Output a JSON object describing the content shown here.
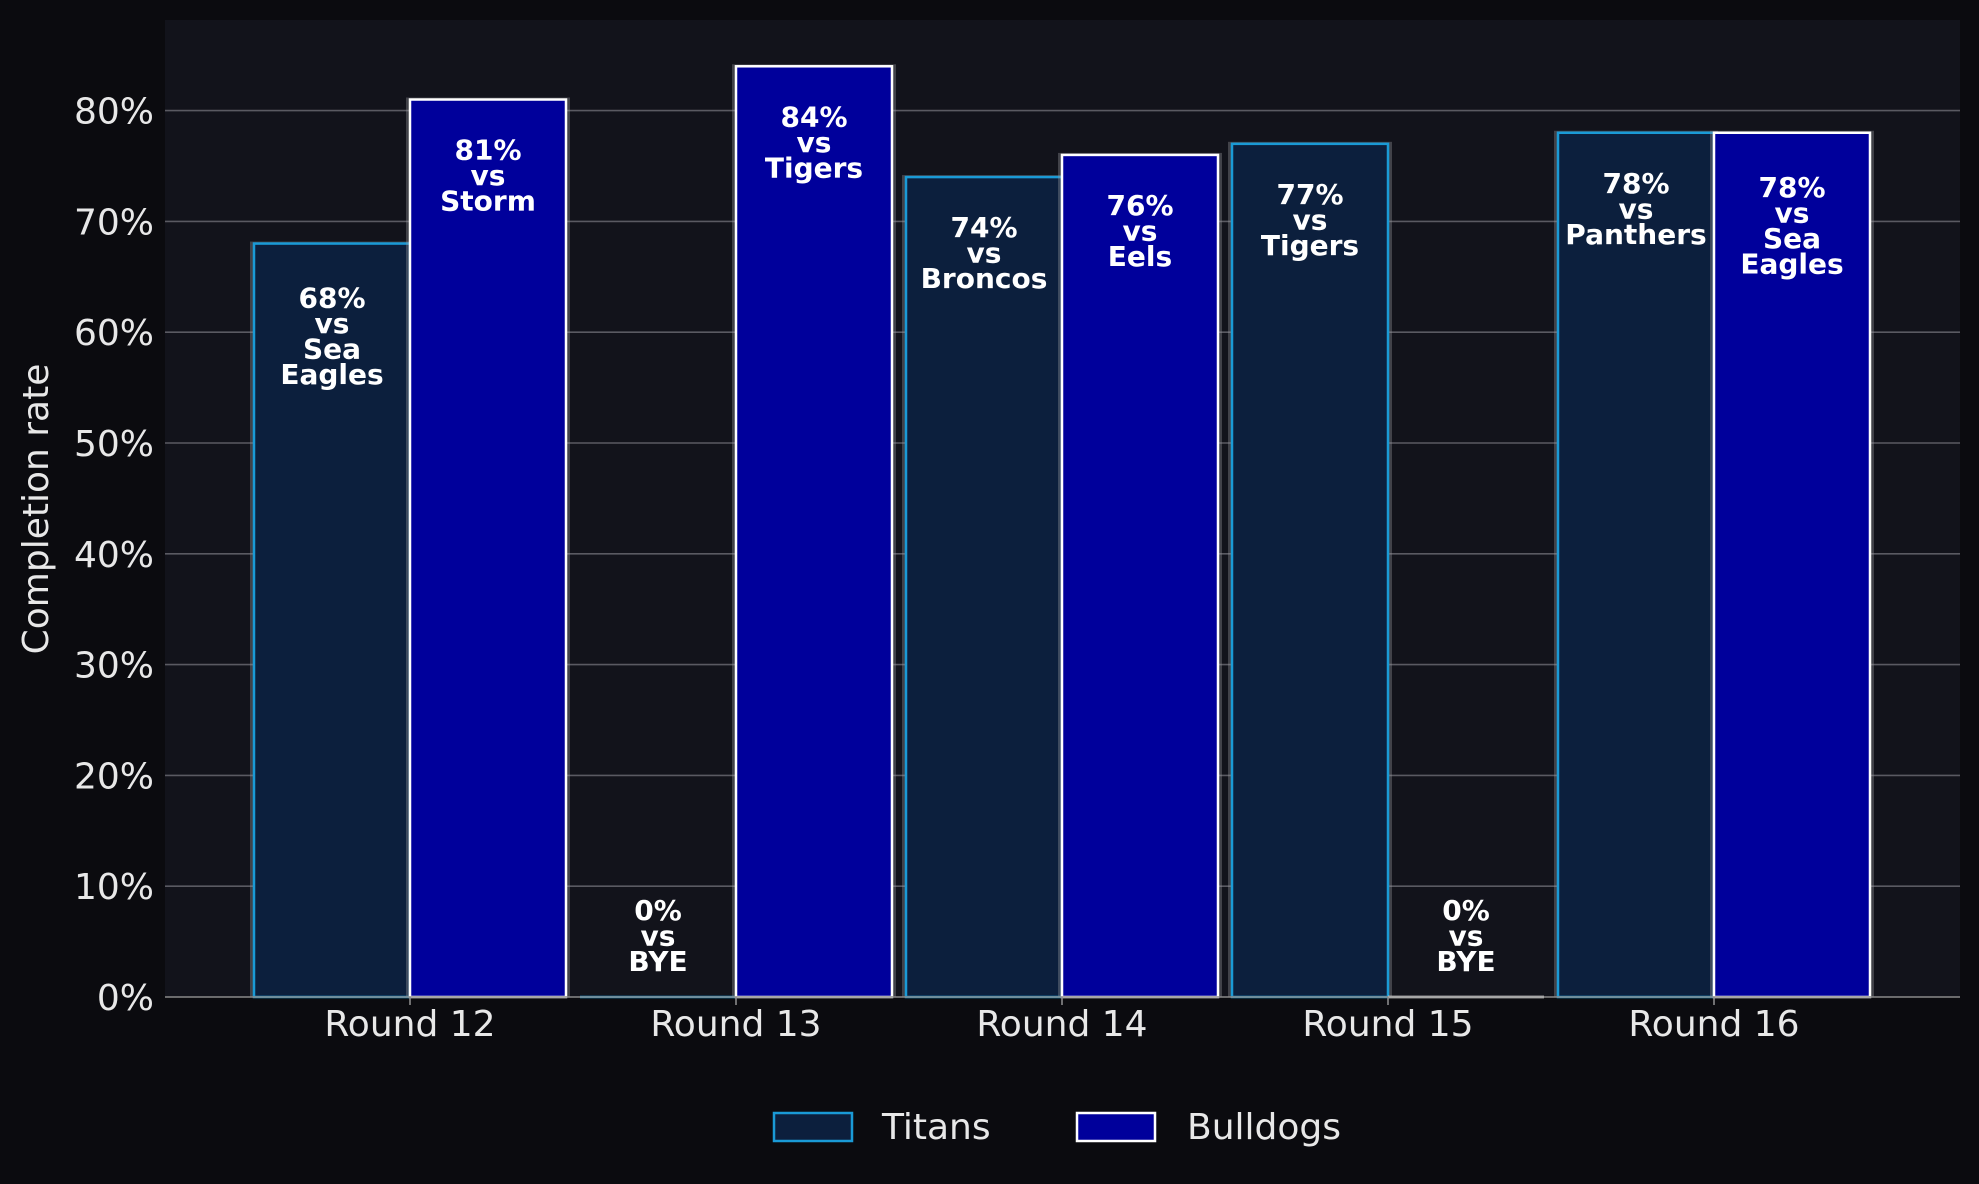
{
  "chart_data": {
    "type": "bar",
    "title": "",
    "xlabel": "",
    "ylabel": "Completion rate",
    "ylim": [
      0,
      88
    ],
    "yticks": [
      0,
      10,
      20,
      30,
      40,
      50,
      60,
      70,
      80
    ],
    "ytick_suffix": "%",
    "grid": true,
    "legend_position": "bottom-center",
    "categories": [
      "Round 12",
      "Round 13",
      "Round 14",
      "Round 15",
      "Round 16"
    ],
    "series": [
      {
        "name": "Titans",
        "fill": "#0c1f3d",
        "edge": "#1a9ad6",
        "values": [
          68,
          0,
          74,
          77,
          78
        ],
        "labels": [
          "68%\nvs\nSea\nEagles",
          "0%\nvs\nBYE",
          "74%\nvs\nBroncos",
          "77%\nvs\nTigers",
          "78%\nvs\nPanthers"
        ]
      },
      {
        "name": "Bulldogs",
        "fill": "#00009b",
        "edge": "#ffffff",
        "values": [
          81,
          84,
          76,
          0,
          78
        ],
        "labels": [
          "81%\nvs\nStorm",
          "84%\nvs\nTigers",
          "76%\nvs\nEels",
          "0%\nvs\nBYE",
          "78%\nvs\nSea\nEagles"
        ]
      }
    ]
  }
}
